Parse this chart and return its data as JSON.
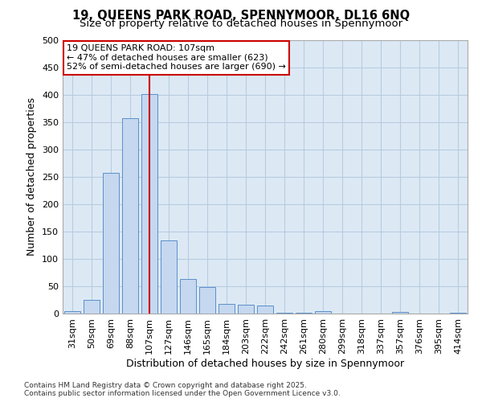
{
  "title_line1": "19, QUEENS PARK ROAD, SPENNYMOOR, DL16 6NQ",
  "title_line2": "Size of property relative to detached houses in Spennymoor",
  "xlabel": "Distribution of detached houses by size in Spennymoor",
  "ylabel": "Number of detached properties",
  "categories": [
    "31sqm",
    "50sqm",
    "69sqm",
    "88sqm",
    "107sqm",
    "127sqm",
    "146sqm",
    "165sqm",
    "184sqm",
    "203sqm",
    "222sqm",
    "242sqm",
    "261sqm",
    "280sqm",
    "299sqm",
    "318sqm",
    "337sqm",
    "357sqm",
    "376sqm",
    "395sqm",
    "414sqm"
  ],
  "values": [
    5,
    25,
    257,
    358,
    401,
    134,
    63,
    49,
    18,
    16,
    14,
    1,
    1,
    5,
    0,
    0,
    0,
    3,
    0,
    0,
    2
  ],
  "bar_color": "#c5d8f0",
  "bar_edge_color": "#5b8fc9",
  "vline_x": 4,
  "vline_color": "#cc0000",
  "annotation_text": "19 QUEENS PARK ROAD: 107sqm\n← 47% of detached houses are smaller (623)\n52% of semi-detached houses are larger (690) →",
  "annotation_box_color": "#cc0000",
  "ylim": [
    0,
    500
  ],
  "yticks": [
    0,
    50,
    100,
    150,
    200,
    250,
    300,
    350,
    400,
    450,
    500
  ],
  "footer_line1": "Contains HM Land Registry data © Crown copyright and database right 2025.",
  "footer_line2": "Contains public sector information licensed under the Open Government Licence v3.0.",
  "background_color": "#ffffff",
  "plot_bg_color": "#dce9f5",
  "grid_color": "#b8ccdf",
  "title_fontsize": 10.5,
  "subtitle_fontsize": 9.5,
  "tick_fontsize": 8,
  "label_fontsize": 9,
  "footer_fontsize": 6.5,
  "annotation_fontsize": 8
}
